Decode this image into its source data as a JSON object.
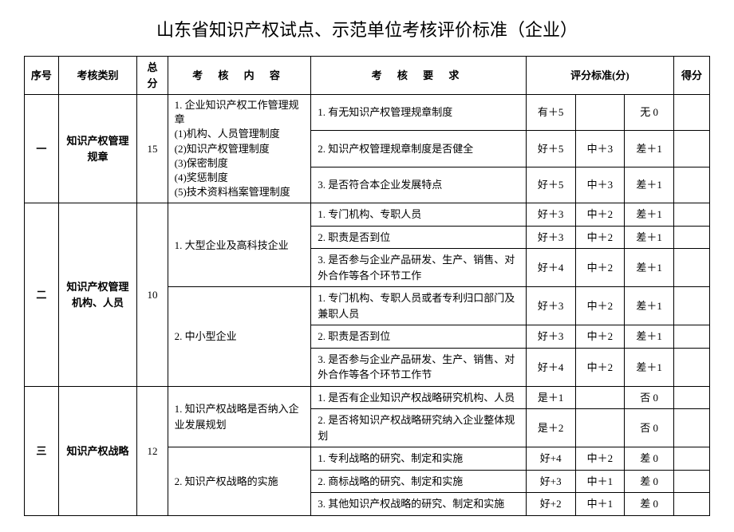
{
  "title": "山东省知识产权试点、示范单位考核评价标准（企业）",
  "headers": {
    "idx": "序号",
    "cat": "考核类别",
    "total": "总分",
    "content": "考 核 内 容",
    "req": "考 核 要 求",
    "std": "评分标准(分)",
    "score": "得分"
  },
  "sec1": {
    "idx": "一",
    "cat": "知识产权管理规章",
    "total": "15",
    "content": "1. 企业知识产权工作管理规章\n(1)机构、人员管理制度\n(2)知识产权管理制度\n(3)保密制度\n(4)奖惩制度\n(5)技术资料档案管理制度",
    "r1": {
      "req": "1. 有无知识产权管理规章制度",
      "s1": "有＋5",
      "s2": "",
      "s3": "无 0"
    },
    "r2": {
      "req": "2. 知识产权管理规章制度是否健全",
      "s1": "好＋5",
      "s2": "中＋3",
      "s3": "差＋1"
    },
    "r3": {
      "req": "3. 是否符合本企业发展特点",
      "s1": "好＋5",
      "s2": "中＋3",
      "s3": "差＋1"
    }
  },
  "sec2": {
    "idx": "二",
    "cat": "知识产权管理机构、人员",
    "total": "10",
    "c1": "1. 大型企业及高科技企业",
    "c2": "2. 中小型企业",
    "r1": {
      "req": "1. 专门机构、专职人员",
      "s1": "好＋3",
      "s2": "中＋2",
      "s3": "差＋1"
    },
    "r2": {
      "req": "2. 职责是否到位",
      "s1": "好＋3",
      "s2": "中＋2",
      "s3": "差＋1"
    },
    "r3": {
      "req": "3. 是否参与企业产品研发、生产、销售、对外合作等各个环节工作",
      "s1": "好＋4",
      "s2": "中＋2",
      "s3": "差＋1"
    },
    "r4": {
      "req": "1. 专门机构、专职人员或者专利归口部门及兼职人员",
      "s1": "好＋3",
      "s2": "中＋2",
      "s3": "差＋1"
    },
    "r5": {
      "req": "2. 职责是否到位",
      "s1": "好＋3",
      "s2": "中＋2",
      "s3": "差＋1"
    },
    "r6": {
      "req": "3. 是否参与企业产品研发、生产、销售、对外合作等各个环节工作节",
      "s1": "好＋4",
      "s2": "中＋2",
      "s3": "差＋1"
    }
  },
  "sec3": {
    "idx": "三",
    "cat": "知识产权战略",
    "total": "12",
    "c1": "1. 知识产权战略是否纳入企业发展规划",
    "c2": "2. 知识产权战略的实施",
    "r1": {
      "req": "1. 是否有企业知识产权战略研究机构、人员",
      "s1": "是＋1",
      "s2": "",
      "s3": "否 0"
    },
    "r2": {
      "req": "2. 是否将知识产权战略研究纳入企业整体规划",
      "s1": "是＋2",
      "s2": "",
      "s3": "否 0"
    },
    "r3": {
      "req": "1. 专利战略的研究、制定和实施",
      "s1": "好+4",
      "s2": "中＋2",
      "s3": "差 0"
    },
    "r4": {
      "req": "2. 商标战略的研究、制定和实施",
      "s1": "好+3",
      "s2": "中＋1",
      "s3": "差 0"
    },
    "r5": {
      "req": "3. 其他知识产权战略的研究、制定和实施",
      "s1": "好+2",
      "s2": "中＋1",
      "s3": "差 0"
    }
  }
}
